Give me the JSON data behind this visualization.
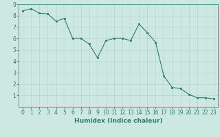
{
  "x": [
    0,
    1,
    2,
    3,
    4,
    5,
    6,
    7,
    8,
    9,
    10,
    11,
    12,
    13,
    14,
    15,
    16,
    17,
    18,
    19,
    20,
    21,
    22,
    23
  ],
  "y": [
    8.4,
    8.6,
    8.2,
    8.15,
    7.5,
    7.75,
    6.0,
    6.0,
    5.5,
    4.3,
    5.8,
    6.0,
    6.0,
    5.8,
    7.25,
    6.5,
    5.65,
    2.7,
    1.7,
    1.6,
    1.1,
    0.8,
    0.8,
    0.7
  ],
  "line_color": "#2e7d6e",
  "marker_color": "#2e7d6e",
  "bg_color": "#cce8e0",
  "grid_color": "#b8d8cc",
  "xlabel": "Humidex (Indice chaleur)",
  "xlim": [
    -0.5,
    23.5
  ],
  "ylim": [
    0,
    9
  ],
  "yticks": [
    1,
    2,
    3,
    4,
    5,
    6,
    7,
    8,
    9
  ],
  "xticks": [
    0,
    1,
    2,
    3,
    4,
    5,
    6,
    7,
    8,
    9,
    10,
    11,
    12,
    13,
    14,
    15,
    16,
    17,
    18,
    19,
    20,
    21,
    22,
    23
  ],
  "tick_color": "#2e7d6e",
  "label_color": "#2e7d6e",
  "xlabel_fontsize": 6.5,
  "tick_fontsize": 5.5
}
